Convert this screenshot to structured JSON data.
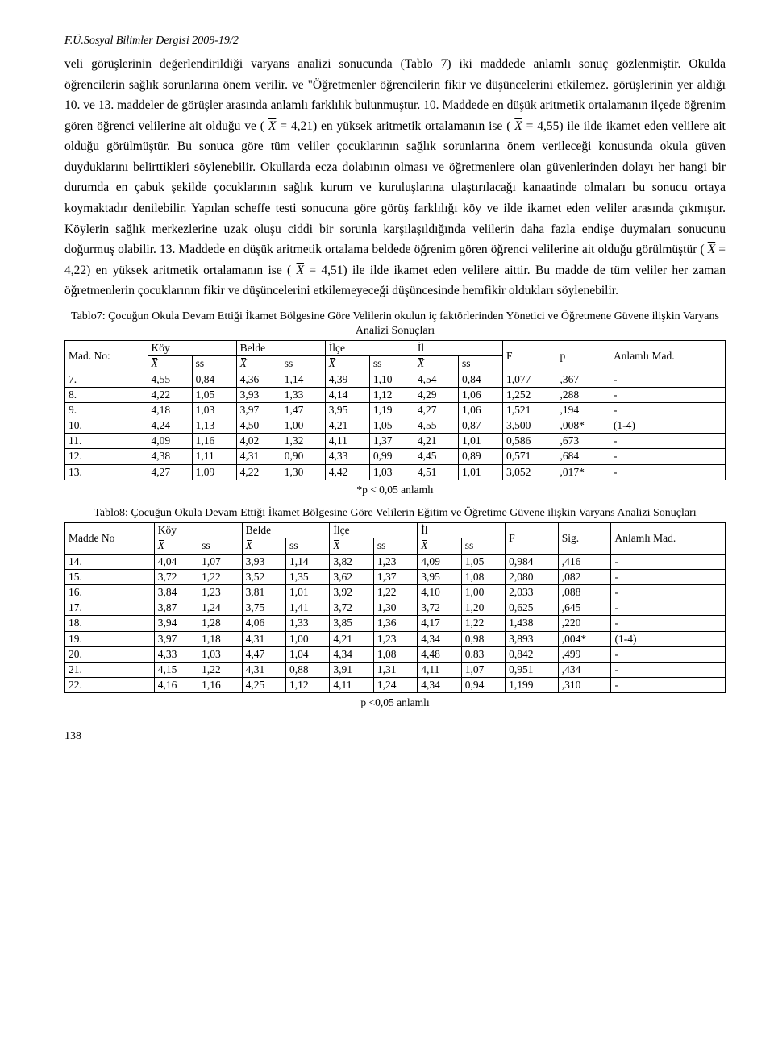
{
  "header": "F.Ü.Sosyal Bilimler Dergisi 2009-19/2",
  "paragraph": "veli görüşlerinin değerlendirildiği varyans analizi sonucunda (Tablo 7) iki maddede anlamlı sonuç gözlenmiştir. Okulda öğrencilerin sağlık sorunlarına önem verilir. ve \"Öğretmenler öğrencilerin fikir ve düşüncelerini etkilemez. görüşlerinin yer aldığı 10. ve 13. maddeler de görüşler arasında anlamlı farklılık bulunmuştur. 10. Maddede en düşük aritmetik ortalamanın ilçede öğrenim gören öğrenci velilerine ait olduğu ve ( X̄ = 4,21) en yüksek aritmetik ortalamanın ise ( X̄ = 4,55) ile ilde ikamet eden velilere ait olduğu görülmüştür. Bu sonuca göre tüm veliler çocuklarının sağlık sorunlarına önem verileceği konusunda okula güven duyduklarını belirttikleri söylenebilir. Okullarda ecza dolabının olması ve öğretmenlere olan güvenlerinden dolayı her hangi bir durumda en çabuk şekilde çocuklarının sağlık kurum ve kuruluşlarına ulaştırılacağı kanaatinde olmaları bu sonucu ortaya koymaktadır denilebilir. Yapılan scheffe testi sonucuna göre görüş farklılığı köy ve ilde ikamet eden veliler arasında çıkmıştır. Köylerin sağlık merkezlerine uzak oluşu ciddi bir sorunla karşılaşıldığında velilerin daha fazla endişe duymaları sonucunu doğurmuş olabilir. 13. Maddede en düşük aritmetik ortalama beldede öğrenim gören öğrenci velilerine ait olduğu görülmüştür ( X̄ = 4,22) en yüksek aritmetik ortalamanın ise ( X̄ = 4,51) ile ilde ikamet eden velilere aittir. Bu madde de tüm veliler her zaman öğretmenlerin çocuklarının fikir ve düşüncelerini etkilemeyeceği düşüncesinde hemfikir oldukları söylenebilir.",
  "table7": {
    "caption": "Tablo7:  Çocuğun Okula Devam Ettiği İkamet Bölgesine Göre Velilerin okulun iç faktörlerinden Yönetici ve Öğretmene Güvene ilişkin Varyans Analizi Sonuçları",
    "head_madno": "Mad. No:",
    "groups": [
      "Köy",
      "Belde",
      "İlçe",
      "İl"
    ],
    "stat_x": "X",
    "stat_ss": "ss",
    "col_F": "F",
    "col_p": "p",
    "col_anlamli": "Anlamlı Mad.",
    "rows": [
      [
        "7.",
        "4,55",
        "0,84",
        "4,36",
        "1,14",
        "4,39",
        "1,10",
        "4,54",
        "0,84",
        "1,077",
        ",367",
        "-"
      ],
      [
        "8.",
        "4,22",
        "1,05",
        "3,93",
        "1,33",
        "4,14",
        "1,12",
        "4,29",
        "1,06",
        "1,252",
        ",288",
        "-"
      ],
      [
        "9.",
        "4,18",
        "1,03",
        "3,97",
        "1,47",
        "3,95",
        "1,19",
        "4,27",
        "1,06",
        "1,521",
        ",194",
        "-"
      ],
      [
        "10.",
        "4,24",
        "1,13",
        "4,50",
        "1,00",
        "4,21",
        "1,05",
        "4,55",
        "0,87",
        "3,500",
        ",008*",
        "(1-4)"
      ],
      [
        "11.",
        "4,09",
        "1,16",
        "4,02",
        "1,32",
        "4,11",
        "1,37",
        "4,21",
        "1,01",
        "0,586",
        ",673",
        "-"
      ],
      [
        "12.",
        "4,38",
        "1,11",
        "4,31",
        "0,90",
        "4,33",
        "0,99",
        "4,45",
        "0,89",
        "0,571",
        ",684",
        "-"
      ],
      [
        "13.",
        "4,27",
        "1,09",
        "4,22",
        "1,30",
        "4,42",
        "1,03",
        "4,51",
        "1,01",
        "3,052",
        ",017*",
        "-"
      ]
    ],
    "footnote": "*p < 0,05 anlamlı"
  },
  "table8": {
    "caption": "Tablo8:  Çocuğun Okula Devam Ettiği İkamet Bölgesine Göre Velilerin Eğitim ve Öğretime Güvene ilişkin Varyans Analizi Sonuçları",
    "head_madno": "Madde No",
    "groups": [
      "Köy",
      "Belde",
      "İlçe",
      "İl"
    ],
    "stat_x": "X",
    "stat_ss": "ss",
    "col_F": "F",
    "col_sig": "Sig.",
    "col_anlamli": "Anlamlı Mad.",
    "rows": [
      [
        "14.",
        "4,04",
        "1,07",
        "3,93",
        "1,14",
        "3,82",
        "1,23",
        "4,09",
        "1,05",
        "0,984",
        ",416",
        "-"
      ],
      [
        "15.",
        "3,72",
        "1,22",
        "3,52",
        "1,35",
        "3,62",
        "1,37",
        "3,95",
        "1,08",
        "2,080",
        ",082",
        "-"
      ],
      [
        "16.",
        "3,84",
        "1,23",
        "3,81",
        "1,01",
        "3,92",
        "1,22",
        "4,10",
        "1,00",
        "2,033",
        ",088",
        "-"
      ],
      [
        "17.",
        "3,87",
        "1,24",
        "3,75",
        "1,41",
        "3,72",
        "1,30",
        "3,72",
        "1,20",
        "0,625",
        ",645",
        "-"
      ],
      [
        "18.",
        "3,94",
        "1,28",
        "4,06",
        "1,33",
        "3,85",
        "1,36",
        "4,17",
        "1,22",
        "1,438",
        ",220",
        "-"
      ],
      [
        "19.",
        "3,97",
        "1,18",
        "4,31",
        "1,00",
        "4,21",
        "1,23",
        "4,34",
        "0,98",
        "3,893",
        ",004*",
        "(1-4)"
      ],
      [
        "20.",
        "4,33",
        "1,03",
        "4,47",
        "1,04",
        "4,34",
        "1,08",
        "4,48",
        "0,83",
        "0,842",
        ",499",
        "-"
      ],
      [
        "21.",
        "4,15",
        "1,22",
        "4,31",
        "0,88",
        "3,91",
        "1,31",
        "4,11",
        "1,07",
        "0,951",
        ",434",
        "-"
      ],
      [
        "22.",
        "4,16",
        "1,16",
        "4,25",
        "1,12",
        "4,11",
        "1,24",
        "4,34",
        "0,94",
        "1,199",
        ",310",
        "-"
      ]
    ],
    "footnote": "p <0,05 anlamlı"
  },
  "page_number": "138"
}
